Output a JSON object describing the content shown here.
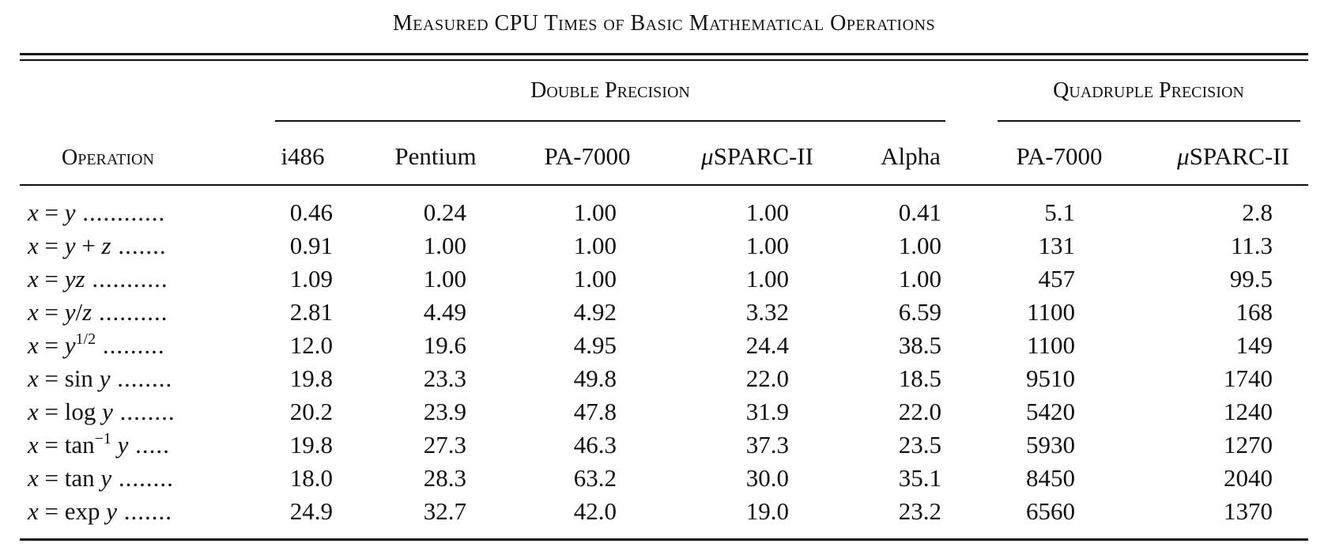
{
  "table": {
    "title": "Measured CPU Times of Basic Mathematical Operations",
    "group_headers": {
      "double": "Double Precision",
      "quadruple": "Quadruple Precision"
    },
    "operation_header": "Operation",
    "columns": {
      "i486": "i486",
      "pentium": "Pentium",
      "pa7000_d": "PA-7000",
      "usparc_d": "SPARC-II",
      "alpha": "Alpha",
      "pa7000_q": "PA-7000",
      "usparc_q": "SPARC-II"
    },
    "mu_symbol": "μ",
    "operations": [
      "x = y",
      "x = y + z",
      "x = yz",
      "x = y/z",
      "x = y^1/2",
      "x = sin y",
      "x = log y",
      "x = tan^-1 y",
      "x = tan y",
      "x = exp y"
    ],
    "rows": [
      {
        "i486": "0.46",
        "pentium": "0.24",
        "pa7000_d": "1.00",
        "usparc_d": "1.00",
        "alpha": "0.41",
        "pa7000_q": "5.1",
        "usparc_q": "2.8"
      },
      {
        "i486": "0.91",
        "pentium": "1.00",
        "pa7000_d": "1.00",
        "usparc_d": "1.00",
        "alpha": "1.00",
        "pa7000_q": "131",
        "usparc_q": "11.3"
      },
      {
        "i486": "1.09",
        "pentium": "1.00",
        "pa7000_d": "1.00",
        "usparc_d": "1.00",
        "alpha": "1.00",
        "pa7000_q": "457",
        "usparc_q": "99.5"
      },
      {
        "i486": "2.81",
        "pentium": "4.49",
        "pa7000_d": "4.92",
        "usparc_d": "3.32",
        "alpha": "6.59",
        "pa7000_q": "1100",
        "usparc_q": "168"
      },
      {
        "i486": "12.0",
        "pentium": "19.6",
        "pa7000_d": "4.95",
        "usparc_d": "24.4",
        "alpha": "38.5",
        "pa7000_q": "1100",
        "usparc_q": "149"
      },
      {
        "i486": "19.8",
        "pentium": "23.3",
        "pa7000_d": "49.8",
        "usparc_d": "22.0",
        "alpha": "18.5",
        "pa7000_q": "9510",
        "usparc_q": "1740"
      },
      {
        "i486": "20.2",
        "pentium": "23.9",
        "pa7000_d": "47.8",
        "usparc_d": "31.9",
        "alpha": "22.0",
        "pa7000_q": "5420",
        "usparc_q": "1240"
      },
      {
        "i486": "19.8",
        "pentium": "27.3",
        "pa7000_d": "46.3",
        "usparc_d": "37.3",
        "alpha": "23.5",
        "pa7000_q": "5930",
        "usparc_q": "1270"
      },
      {
        "i486": "18.0",
        "pentium": "28.3",
        "pa7000_d": "63.2",
        "usparc_d": "30.0",
        "alpha": "35.1",
        "pa7000_q": "8450",
        "usparc_q": "2040"
      },
      {
        "i486": "24.9",
        "pentium": "32.7",
        "pa7000_d": "42.0",
        "usparc_d": "19.0",
        "alpha": "23.2",
        "pa7000_q": "6560",
        "usparc_q": "1370"
      }
    ]
  }
}
